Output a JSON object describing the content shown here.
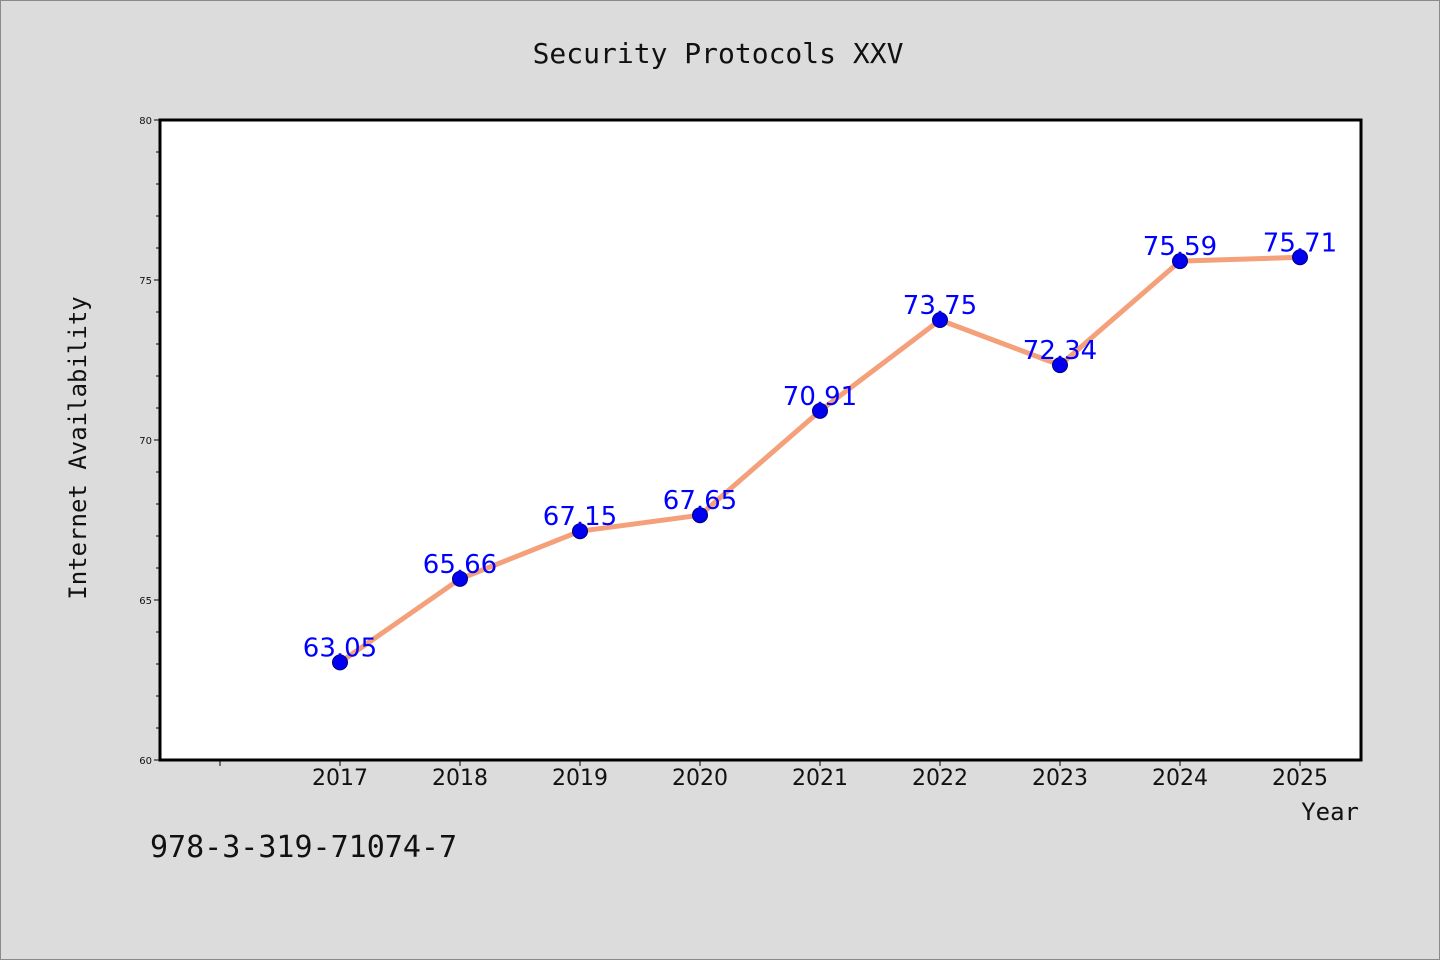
{
  "chart_data": {
    "type": "line",
    "title": "Security Protocols XXV",
    "xlabel": "Year",
    "ylabel": "Internet Availability",
    "x": [
      "2017",
      "2018",
      "2019",
      "2020",
      "2021",
      "2022",
      "2023",
      "2024",
      "2025"
    ],
    "series": [
      {
        "values": [
          63.05,
          65.66,
          67.15,
          67.65,
          70.91,
          73.75,
          72.34,
          75.59,
          75.71
        ],
        "data_labels": [
          "63.05",
          "65.66",
          "67.15",
          "67.65",
          "70.91",
          "73.75",
          "72.34",
          "75.59",
          "75.71"
        ]
      }
    ],
    "ylim": [
      60,
      80
    ],
    "yticks": [
      60,
      65,
      70,
      75,
      80
    ],
    "ytick_labels": [
      "60",
      "65",
      "70",
      "75",
      "80"
    ],
    "grid": false,
    "colors": {
      "line": "#f4a07a",
      "marker": "#0000ee",
      "marker_edge": "#000080",
      "data_label": "#0000ff",
      "background": "#dcdcdc",
      "plot_background": "#ffffff"
    }
  },
  "footer": {
    "isbn": "978-3-319-71074-7"
  }
}
